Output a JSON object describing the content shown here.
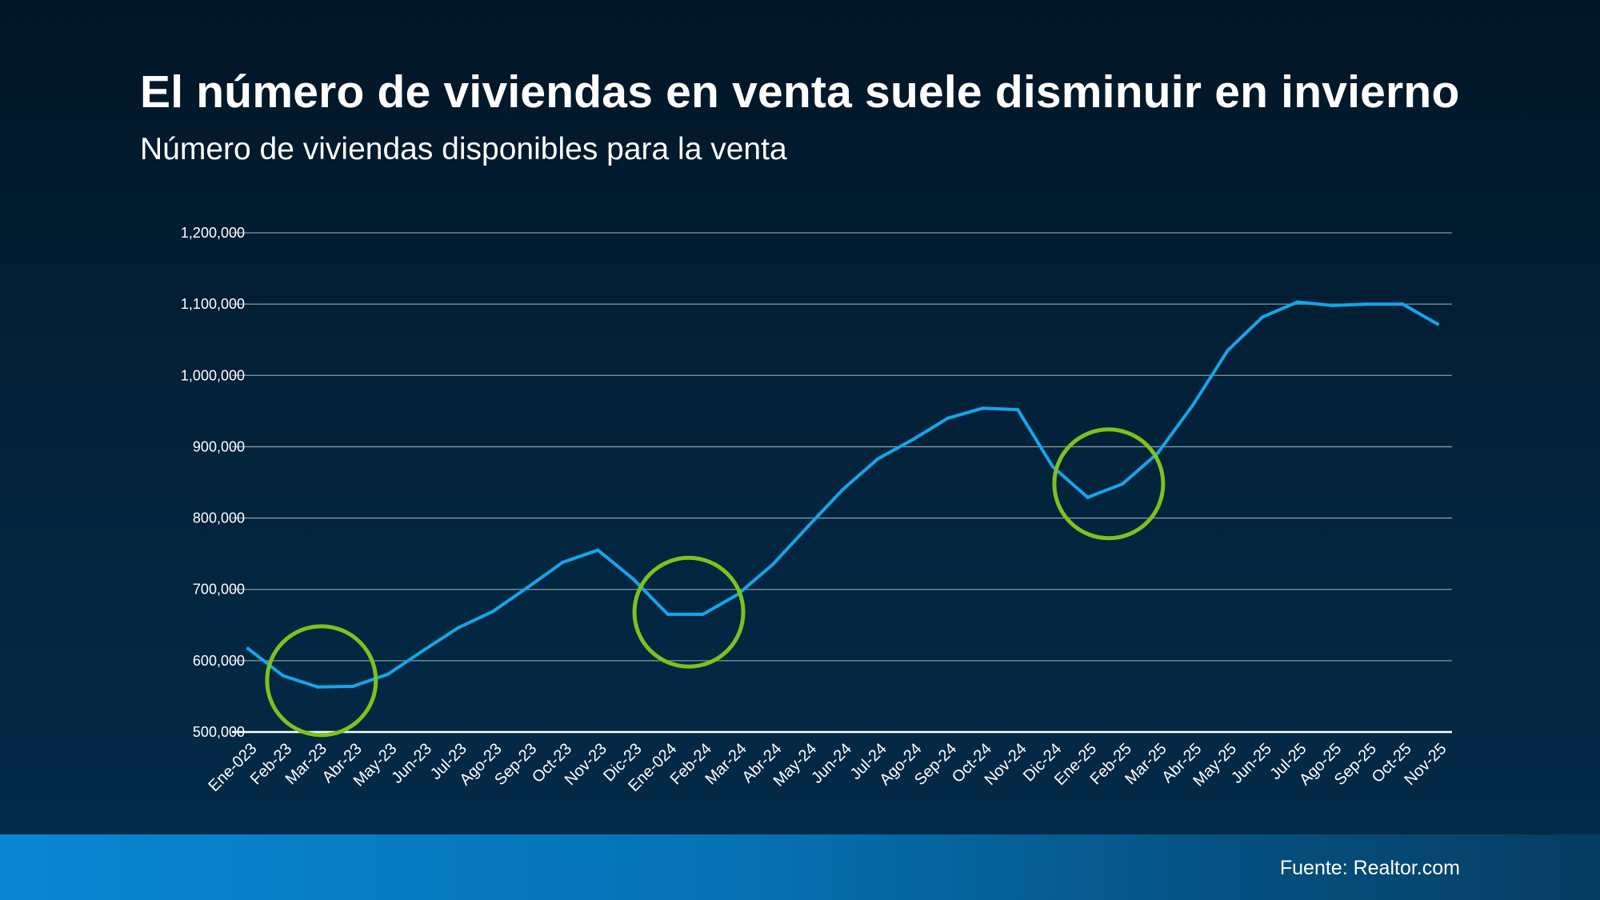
{
  "header": {
    "title": "El número de viviendas en venta suele disminuir en invierno",
    "subtitle": "Número de viviendas disponibles para la venta"
  },
  "footer": {
    "source": "Fuente: Realtor.com"
  },
  "colors": {
    "line": "#12a7ea",
    "highlight": "#7dc21e",
    "grid": "#8a97a3",
    "axis": "#ffffff"
  },
  "chart_data": {
    "type": "line",
    "title": "Número de viviendas disponibles para la venta",
    "xlabel": "",
    "ylabel": "",
    "ylim": [
      500000,
      1200000
    ],
    "yticks": [
      500000,
      600000,
      700000,
      800000,
      900000,
      1000000,
      1100000,
      1200000
    ],
    "ytick_labels": [
      "500,000",
      "600,000",
      "700,000",
      "800,000",
      "900,000",
      "1,000,000",
      "1,100,000",
      "1,200,000"
    ],
    "grid": true,
    "categories": [
      "Ene-023",
      "Feb-23",
      "Mar-23",
      "Abr-23",
      "May-23",
      "Jun-23",
      "Jul-23",
      "Ago-23",
      "Sep-23",
      "Oct-23",
      "Nov-23",
      "Dic-23",
      "Ene-024",
      "Feb-24",
      "Mar-24",
      "Abr-24",
      "May-24",
      "Jun-24",
      "Jul-24",
      "Ago-24",
      "Sep-24",
      "Oct-24",
      "Nov-24",
      "Dic-24",
      "Ene-25",
      "Feb-25",
      "Mar-25",
      "Abr-25",
      "May-25",
      "Jun-25",
      "Jul-25",
      "Ago-25",
      "Sep-25",
      "Oct-25",
      "Nov-25"
    ],
    "series": [
      {
        "name": "Viviendas disponibles",
        "values": [
          617000,
          579000,
          563000,
          564000,
          581000,
          614000,
          646000,
          669000,
          703000,
          738000,
          755000,
          715000,
          665000,
          665000,
          693000,
          735000,
          788000,
          840000,
          883000,
          910000,
          940000,
          954000,
          952000,
          872000,
          829000,
          848000,
          891000,
          958000,
          1035000,
          1082000,
          1103000,
          1098000,
          1100000,
          1100000,
          1072000
        ]
      }
    ],
    "annotations": [
      {
        "type": "circle",
        "label": "Mar-23",
        "center_x": 2.1,
        "center_y": 572000
      },
      {
        "type": "circle",
        "label": "Feb-24",
        "center_x": 12.6,
        "center_y": 668000
      },
      {
        "type": "circle",
        "label": "Feb-25",
        "center_x": 24.6,
        "center_y": 848000
      }
    ]
  }
}
